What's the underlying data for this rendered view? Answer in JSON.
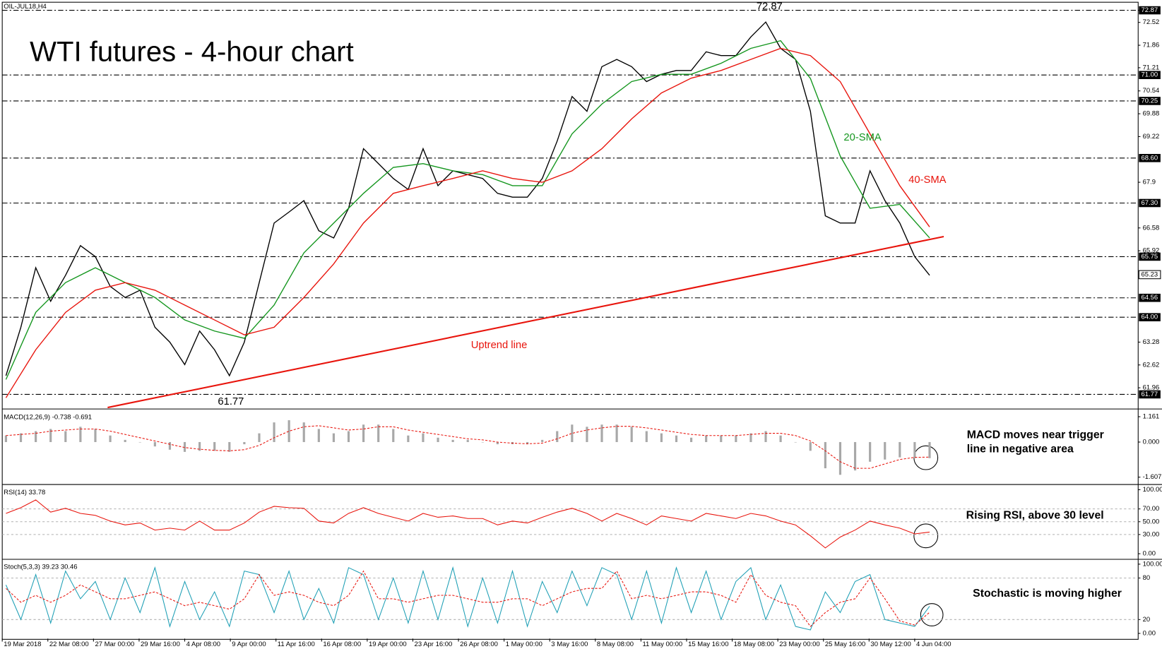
{
  "chart_data": [
    {
      "type": "line",
      "title": "OIL-JUL18,H4",
      "subtitle": "WTI futures - 4-hour chart",
      "xlim": [
        0,
        305
      ],
      "ylim": [
        61.38,
        73.06
      ],
      "yticks": [
        72.87,
        72.52,
        71.86,
        71.21,
        70.54,
        69.88,
        69.22,
        67.9,
        66.58,
        65.92,
        63.28,
        62.62,
        61.96
      ],
      "levels": [
        72.87,
        {
          "value": 71,
          "label": "71.00"
        },
        70.25,
        {
          "value": 68.6,
          "label": "68.60"
        },
        {
          "value": 67.3,
          "label": "67.30"
        },
        65.75,
        64.56,
        {
          "value": 64,
          "label": "64.00"
        },
        61.77
      ],
      "current_price": 65.23,
      "series": [
        {
          "color": "#000000",
          "x": [
            1,
            5,
            9,
            13,
            17,
            21,
            25,
            29,
            33,
            37,
            41,
            45,
            49,
            53,
            57,
            61,
            65,
            69,
            73,
            77,
            81,
            85,
            89,
            93,
            97,
            101,
            105,
            109,
            113,
            117,
            121,
            125,
            129,
            133,
            137,
            141,
            145,
            149,
            153,
            157,
            161,
            165,
            169,
            173,
            177,
            181,
            185,
            189,
            193,
            197,
            201,
            205,
            209,
            213,
            217,
            221,
            225,
            229,
            233,
            237,
            241,
            245,
            249
          ],
          "values": [
            62.31,
            63.71,
            65.43,
            64.46,
            65.21,
            66.07,
            65.75,
            64.89,
            64.57,
            64.78,
            63.71,
            63.28,
            62.63,
            63.6,
            63.06,
            62.31,
            63.28,
            65.0,
            66.72,
            67.04,
            67.37,
            66.5,
            66.29,
            67.15,
            68.87,
            68.44,
            68.01,
            67.69,
            68.87,
            67.8,
            68.23,
            68.12,
            68.01,
            67.58,
            67.47,
            67.47,
            68.01,
            69.09,
            70.38,
            69.95,
            71.24,
            71.45,
            71.24,
            70.81,
            71.02,
            71.13,
            71.13,
            71.67,
            71.56,
            71.56,
            72.1,
            72.53,
            71.77,
            71.45,
            69.95,
            66.93,
            66.72,
            66.72,
            68.23,
            67.37,
            66.72,
            65.75,
            65.21
          ]
        },
        {
          "name": "20-SMA",
          "color": "#14961e",
          "x": [
            1,
            9,
            17,
            25,
            33,
            41,
            49,
            57,
            65,
            73,
            81,
            89,
            97,
            105,
            113,
            121,
            129,
            137,
            145,
            153,
            161,
            169,
            177,
            185,
            193,
            201,
            209,
            217,
            225,
            233,
            241,
            249
          ],
          "values": [
            62.2,
            64.14,
            65.0,
            65.43,
            65.0,
            64.57,
            63.92,
            63.6,
            63.39,
            64.35,
            65.86,
            66.72,
            67.58,
            68.33,
            68.44,
            68.23,
            68.12,
            67.8,
            67.8,
            69.3,
            70.16,
            70.81,
            71.02,
            71.02,
            71.34,
            71.77,
            71.99,
            70.9,
            68.66,
            67.15,
            67.26,
            66.29
          ]
        },
        {
          "name": "40-SMA",
          "color": "#e8140c",
          "x": [
            1,
            9,
            17,
            25,
            33,
            41,
            49,
            57,
            65,
            73,
            81,
            89,
            97,
            105,
            113,
            121,
            129,
            137,
            145,
            153,
            161,
            169,
            177,
            185,
            193,
            201,
            209,
            217,
            225,
            233,
            241,
            249
          ],
          "values": [
            61.67,
            63.06,
            64.14,
            64.78,
            65.0,
            64.78,
            64.35,
            63.92,
            63.49,
            63.71,
            64.57,
            65.54,
            66.72,
            67.58,
            67.8,
            68.01,
            68.23,
            68.01,
            67.9,
            68.23,
            68.87,
            69.73,
            70.48,
            70.91,
            71.13,
            71.45,
            71.77,
            71.56,
            70.81,
            69.3,
            67.8,
            66.61
          ]
        }
      ],
      "trendline": {
        "label": "Uptrend line",
        "color": "#e8140c",
        "x": [
          28.3,
          252.8
        ],
        "y": [
          61.39,
          66.33
        ]
      },
      "annotations": [
        "72.87",
        "61.77"
      ]
    },
    {
      "type": "macd",
      "title": "MACD(12,26,9) -0.738 -0.691",
      "xlim": [
        0,
        305
      ],
      "ylim": [
        -1.91,
        1.43
      ],
      "yticks": [
        1.161,
        {
          "value": 0,
          "label": "0.000"
        },
        -1.607
      ],
      "x": [
        1,
        5,
        9,
        13,
        17,
        21,
        25,
        29,
        33,
        37,
        41,
        45,
        49,
        53,
        57,
        61,
        65,
        69,
        73,
        77,
        81,
        85,
        89,
        93,
        97,
        101,
        105,
        109,
        113,
        117,
        121,
        125,
        129,
        133,
        137,
        141,
        145,
        149,
        153,
        157,
        161,
        165,
        169,
        173,
        177,
        181,
        185,
        189,
        193,
        197,
        201,
        205,
        209,
        213,
        217,
        221,
        225,
        229,
        233,
        237,
        241,
        245,
        249
      ],
      "series": [
        {
          "style": "histogram",
          "color": "#a8a8a8",
          "values": [
            0.3,
            0.4,
            0.5,
            0.6,
            0.5,
            0.7,
            0.6,
            0.3,
            0.1,
            0.0,
            -0.2,
            -0.35,
            -0.45,
            -0.4,
            -0.4,
            -0.45,
            -0.1,
            0.4,
            0.9,
            1.0,
            0.9,
            0.6,
            0.4,
            0.5,
            0.8,
            0.8,
            0.6,
            0.3,
            0.4,
            0.2,
            0.1,
            0.1,
            0.0,
            -0.1,
            -0.1,
            -0.1,
            0.1,
            0.5,
            0.8,
            0.7,
            0.8,
            0.8,
            0.7,
            0.5,
            0.4,
            0.3,
            0.2,
            0.3,
            0.3,
            0.3,
            0.4,
            0.5,
            0.3,
            0.0,
            -0.4,
            -1.2,
            -1.5,
            -1.3,
            -0.9,
            -0.8,
            -0.7,
            -0.74,
            -0.738
          ]
        },
        {
          "style": "dashed",
          "color": "#e8140c",
          "values": [
            0.3,
            0.35,
            0.4,
            0.5,
            0.55,
            0.6,
            0.6,
            0.5,
            0.35,
            0.2,
            0.05,
            -0.1,
            -0.25,
            -0.33,
            -0.38,
            -0.4,
            -0.35,
            -0.15,
            0.2,
            0.5,
            0.7,
            0.75,
            0.65,
            0.55,
            0.6,
            0.7,
            0.7,
            0.55,
            0.45,
            0.35,
            0.25,
            0.15,
            0.1,
            0.0,
            -0.05,
            -0.08,
            -0.05,
            0.15,
            0.4,
            0.55,
            0.65,
            0.72,
            0.72,
            0.65,
            0.55,
            0.45,
            0.35,
            0.3,
            0.3,
            0.3,
            0.35,
            0.4,
            0.4,
            0.3,
            0.05,
            -0.4,
            -0.9,
            -1.2,
            -1.2,
            -1.0,
            -0.8,
            -0.7,
            -0.691
          ]
        }
      ],
      "annotations": [
        "MACD moves near trigger",
        "line in negative area"
      ]
    },
    {
      "type": "oscillator",
      "title": "RSI(14) 33.78",
      "xlim": [
        0,
        305
      ],
      "ylim": [
        -7,
        105.8
      ],
      "yticks": [
        {
          "value": 100,
          "label": "100.00"
        },
        {
          "value": 70,
          "label": "70.00"
        },
        {
          "value": 50,
          "label": "50.00"
        },
        {
          "value": 30,
          "label": "30.00"
        },
        {
          "value": 0,
          "label": "0.00"
        }
      ],
      "guide_lines": [
        70,
        50,
        30
      ],
      "x": [
        1,
        5,
        9,
        13,
        17,
        21,
        25,
        29,
        33,
        37,
        41,
        45,
        49,
        53,
        57,
        61,
        65,
        69,
        73,
        77,
        81,
        85,
        89,
        93,
        97,
        101,
        105,
        109,
        113,
        117,
        121,
        125,
        129,
        133,
        137,
        141,
        145,
        149,
        153,
        157,
        161,
        165,
        169,
        173,
        177,
        181,
        185,
        189,
        193,
        197,
        201,
        205,
        209,
        213,
        217,
        221,
        225,
        229,
        233,
        237,
        241,
        245,
        249
      ],
      "series": [
        {
          "style": "solid",
          "color": "#e8140c",
          "values": [
            63,
            72,
            84,
            65,
            71,
            63,
            60,
            51,
            45,
            48,
            37,
            40,
            37,
            51,
            37,
            37,
            48,
            65,
            74,
            72,
            71,
            51,
            48,
            63,
            72,
            63,
            57,
            51,
            63,
            57,
            59,
            55,
            55,
            45,
            51,
            48,
            57,
            65,
            71,
            63,
            51,
            63,
            55,
            45,
            59,
            55,
            51,
            63,
            59,
            55,
            63,
            59,
            51,
            45,
            28,
            9,
            26,
            37,
            51,
            45,
            40,
            31,
            33.78
          ]
        }
      ],
      "annotations": [
        "Rising RSI, above 30 level"
      ]
    },
    {
      "type": "oscillator",
      "title": "Stoch(5,3,3) 39.23 30.46",
      "xlim": [
        0,
        305
      ],
      "ylim": [
        -7.5,
        105.4
      ],
      "yticks": [
        {
          "value": 100,
          "label": "100.00"
        },
        {
          "value": 80,
          "label": "80"
        },
        {
          "value": 20,
          "label": "20"
        },
        {
          "value": 0,
          "label": "0.00"
        }
      ],
      "guide_lines": [
        80,
        20
      ],
      "xticks": [
        {
          "value": 0,
          "label": "19 Mar 2018"
        },
        {
          "value": 12.25,
          "label": "22 Mar 08:00"
        },
        {
          "value": 24.5,
          "label": "27 Mar 00:00"
        },
        {
          "value": 36.75,
          "label": "29 Mar 16:00"
        },
        {
          "value": 49,
          "label": "4 Apr 08:00"
        },
        {
          "value": 61.25,
          "label": "9 Apr 00:00"
        },
        {
          "value": 73.5,
          "label": "11 Apr 16:00"
        },
        {
          "value": 85.75,
          "label": "16 Apr 08:00"
        },
        {
          "value": 98,
          "label": "19 Apr 00:00"
        },
        {
          "value": 110.25,
          "label": "23 Apr 16:00"
        },
        {
          "value": 122.5,
          "label": "26 Apr 08:00"
        },
        {
          "value": 134.75,
          "label": "1 May 00:00"
        },
        {
          "value": 147,
          "label": "3 May 16:00"
        },
        {
          "value": 159.25,
          "label": "8 May 08:00"
        },
        {
          "value": 171.5,
          "label": "11 May 00:00"
        },
        {
          "value": 183.75,
          "label": "15 May 16:00"
        },
        {
          "value": 196,
          "label": "18 May 08:00"
        },
        {
          "value": 208.25,
          "label": "23 May 00:00"
        },
        {
          "value": 220.5,
          "label": "25 May 16:00"
        },
        {
          "value": 232.75,
          "label": "30 May 12:00"
        },
        {
          "value": 245,
          "label": "4 Jun 04:00"
        }
      ],
      "x": [
        1,
        5,
        9,
        13,
        17,
        21,
        25,
        29,
        33,
        37,
        41,
        45,
        49,
        53,
        57,
        61,
        65,
        69,
        73,
        77,
        81,
        85,
        89,
        93,
        97,
        101,
        105,
        109,
        113,
        117,
        121,
        125,
        129,
        133,
        137,
        141,
        145,
        149,
        153,
        157,
        161,
        165,
        169,
        173,
        177,
        181,
        185,
        189,
        193,
        197,
        201,
        205,
        209,
        213,
        217,
        221,
        225,
        229,
        233,
        237,
        241,
        245,
        249
      ],
      "series": [
        {
          "style": "solid",
          "color": "#1e9fb5",
          "values": [
            70,
            20,
            85,
            15,
            90,
            50,
            75,
            20,
            80,
            30,
            95,
            10,
            75,
            20,
            60,
            10,
            90,
            85,
            30,
            90,
            20,
            65,
            15,
            95,
            85,
            20,
            80,
            15,
            90,
            20,
            95,
            10,
            80,
            15,
            90,
            10,
            75,
            30,
            90,
            40,
            95,
            85,
            20,
            90,
            15,
            95,
            30,
            90,
            20,
            75,
            95,
            20,
            70,
            10,
            5,
            60,
            30,
            75,
            85,
            20,
            15,
            10,
            39.23
          ]
        },
        {
          "style": "dashed",
          "color": "#e8140c",
          "values": [
            65,
            45,
            55,
            45,
            55,
            70,
            60,
            50,
            50,
            55,
            60,
            50,
            40,
            45,
            40,
            35,
            50,
            85,
            55,
            60,
            55,
            45,
            40,
            55,
            90,
            50,
            50,
            45,
            50,
            55,
            55,
            50,
            45,
            45,
            50,
            50,
            40,
            50,
            60,
            65,
            65,
            90,
            50,
            55,
            50,
            55,
            60,
            60,
            55,
            45,
            85,
            55,
            45,
            40,
            10,
            30,
            45,
            50,
            80,
            50,
            18,
            12,
            30.46
          ]
        }
      ],
      "annotations": [
        "Stochastic is moving higher"
      ]
    }
  ]
}
